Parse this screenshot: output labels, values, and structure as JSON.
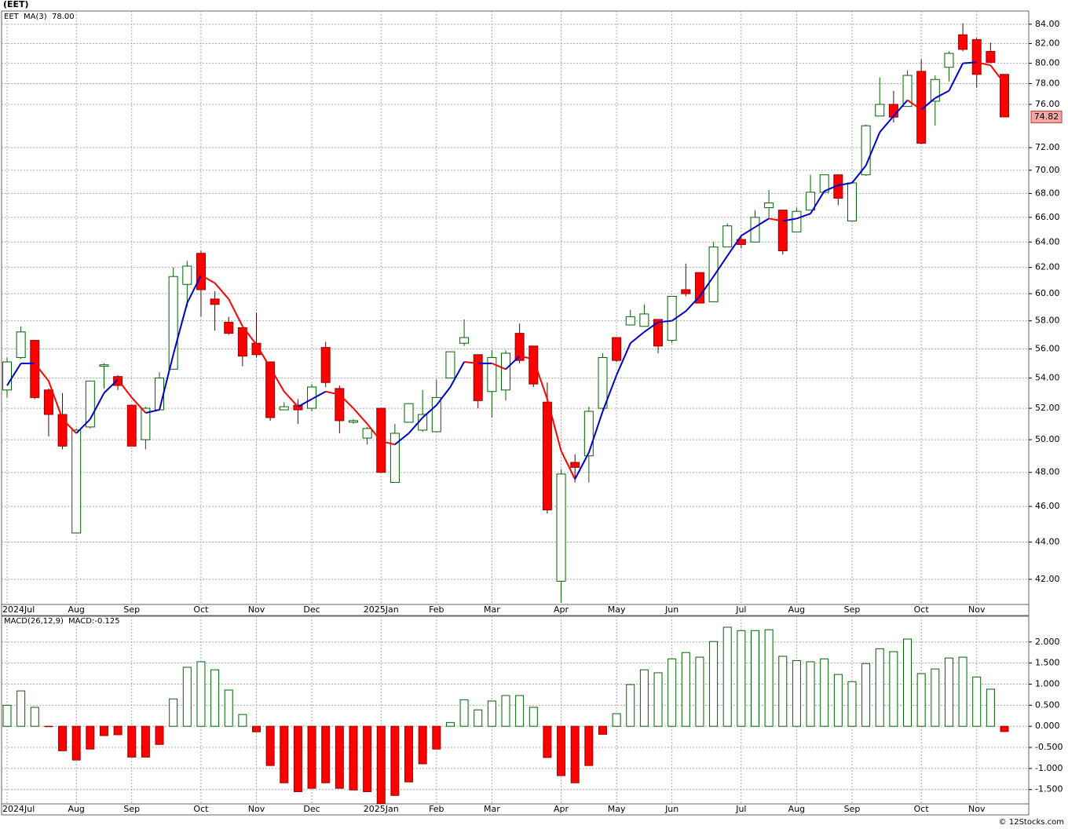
{
  "chart_data": [
    {
      "type": "candlestick",
      "title": "(EET)",
      "symbol": "EET",
      "log_scale": true,
      "grid": true,
      "candle_up_color": "#006400",
      "candle_down_color": "#ff0000",
      "categories": [
        "2024Jul",
        null,
        null,
        null,
        null,
        "Aug",
        null,
        null,
        null,
        "Sep",
        null,
        null,
        null,
        null,
        "Oct",
        null,
        null,
        null,
        "Nov",
        null,
        null,
        null,
        "Dec",
        null,
        null,
        null,
        null,
        "2025Jan",
        null,
        null,
        null,
        "Feb",
        null,
        null,
        null,
        "Mar",
        null,
        null,
        null,
        null,
        "Apr",
        null,
        null,
        null,
        "May",
        null,
        null,
        null,
        "Jun",
        null,
        null,
        null,
        null,
        "Jul",
        null,
        null,
        null,
        "Aug",
        null,
        null,
        null,
        "Sep",
        null,
        null,
        null,
        null,
        "Oct",
        null,
        null,
        null,
        "Nov",
        null,
        null
      ],
      "open": [
        53.2,
        55.4,
        56.6,
        53.2,
        51.6,
        44.5,
        50.8,
        54.8,
        54.1,
        52.2,
        50.0,
        51.9,
        54.6,
        60.7,
        63.1,
        59.6,
        57.9,
        57.5,
        56.4,
        55.1,
        51.9,
        52.2,
        52.0,
        56.1,
        53.3,
        51.1,
        50.1,
        52.0,
        47.4,
        51.1,
        50.6,
        50.5,
        54.0,
        56.4,
        55.6,
        53.1,
        53.2,
        57.1,
        56.2,
        52.4,
        41.9,
        48.6,
        49.0,
        52.0,
        56.8,
        57.7,
        57.6,
        58.1,
        56.6,
        60.3,
        61.6,
        59.4,
        63.6,
        64.2,
        64.0,
        66.8,
        66.6,
        64.8,
        66.6,
        68.1,
        69.6,
        65.7,
        69.6,
        74.9,
        76.0,
        75.8,
        79.2,
        76.3,
        79.6,
        82.9,
        82.4,
        81.2,
        78.9
      ],
      "high": [
        55.4,
        57.6,
        56.6,
        53.3,
        53.0,
        50.7,
        53.8,
        55.0,
        54.2,
        52.2,
        52.1,
        54.4,
        62.0,
        62.5,
        63.3,
        60.2,
        58.3,
        57.5,
        58.6,
        55.1,
        52.4,
        52.6,
        53.6,
        56.5,
        53.5,
        51.3,
        50.8,
        52.0,
        51.0,
        52.3,
        53.2,
        53.9,
        55.8,
        58.1,
        55.6,
        55.9,
        55.9,
        57.8,
        56.2,
        53.7,
        48.2,
        49.1,
        52.1,
        55.7,
        56.8,
        58.8,
        59.2,
        58.1,
        59.8,
        62.3,
        61.6,
        64.0,
        65.5,
        64.5,
        66.6,
        68.3,
        66.6,
        66.8,
        69.6,
        69.6,
        69.6,
        69.0,
        74.1,
        78.6,
        77.3,
        79.3,
        80.4,
        78.8,
        81.2,
        84.1,
        82.6,
        82.1,
        78.9
      ],
      "low": [
        52.7,
        55.3,
        52.6,
        50.2,
        49.4,
        44.5,
        50.7,
        53.3,
        53.2,
        49.6,
        49.4,
        51.9,
        54.6,
        59.0,
        58.3,
        57.3,
        57.0,
        54.8,
        55.4,
        51.2,
        51.9,
        51.0,
        51.8,
        53.4,
        50.4,
        51.0,
        49.7,
        48.0,
        47.4,
        51.1,
        50.5,
        50.5,
        54.0,
        56.2,
        52.0,
        51.4,
        52.5,
        55.0,
        53.4,
        45.6,
        40.8,
        47.4,
        47.4,
        51.9,
        55.1,
        57.7,
        57.6,
        55.7,
        56.4,
        59.8,
        59.3,
        59.4,
        63.6,
        63.5,
        64.0,
        66.0,
        63.0,
        64.8,
        66.6,
        68.1,
        67.0,
        65.7,
        69.5,
        74.9,
        74.3,
        75.8,
        72.3,
        74.0,
        78.2,
        81.2,
        77.6,
        80.0,
        74.82
      ],
      "close": [
        55.1,
        57.2,
        52.7,
        51.6,
        49.6,
        50.6,
        53.8,
        54.9,
        53.5,
        49.6,
        52.0,
        54.0,
        61.3,
        62.1,
        60.3,
        59.2,
        57.1,
        55.5,
        55.6,
        51.4,
        52.1,
        51.9,
        53.4,
        53.7,
        51.2,
        51.2,
        50.7,
        48.0,
        50.4,
        52.3,
        51.6,
        52.7,
        55.8,
        56.8,
        52.5,
        55.4,
        55.7,
        55.2,
        53.6,
        45.8,
        47.9,
        48.3,
        51.8,
        55.4,
        55.2,
        58.3,
        58.5,
        56.2,
        59.8,
        60.0,
        59.3,
        63.6,
        65.3,
        63.8,
        66.0,
        67.2,
        63.3,
        66.5,
        68.1,
        69.6,
        67.6,
        68.9,
        74.0,
        76.0,
        74.8,
        78.8,
        72.4,
        78.4,
        81.0,
        81.4,
        78.9,
        80.1,
        74.82
      ],
      "series": [
        {
          "name": "MA(3)",
          "last_label": "78.00",
          "color": "#0000cc",
          "down_color": "#ff0000",
          "values": [
            53.5,
            55.0,
            55.0,
            53.8,
            51.3,
            50.4,
            51.3,
            53.0,
            53.9,
            52.7,
            51.7,
            51.9,
            55.6,
            59.3,
            61.4,
            60.8,
            59.6,
            57.6,
            56.3,
            54.7,
            53.1,
            52.1,
            52.6,
            53.1,
            52.9,
            52.0,
            51.0,
            49.9,
            49.7,
            50.4,
            51.4,
            52.2,
            53.4,
            55.1,
            55.0,
            55.0,
            54.6,
            55.5,
            55.3,
            52.6,
            49.3,
            47.6,
            49.2,
            51.8,
            54.2,
            56.4,
            57.2,
            57.9,
            58.0,
            58.7,
            59.8,
            61.3,
            62.9,
            64.5,
            65.2,
            65.9,
            65.7,
            65.9,
            66.3,
            68.2,
            68.7,
            68.9,
            70.4,
            73.4,
            74.9,
            76.4,
            75.5,
            76.6,
            77.3,
            80.0,
            80.1,
            79.8,
            78.0
          ]
        }
      ],
      "ylim": [
        40.7,
        85.4
      ],
      "yticks": [
        {
          "value": 42,
          "label": "42.00"
        },
        {
          "value": 44,
          "label": "44.00"
        },
        {
          "value": 46,
          "label": "46.00"
        },
        {
          "value": 48,
          "label": "48.00"
        },
        {
          "value": 50,
          "label": "50.00"
        },
        {
          "value": 52,
          "label": "52.00"
        },
        {
          "value": 54,
          "label": "54.00"
        },
        {
          "value": 56,
          "label": "56.00"
        },
        {
          "value": 58,
          "label": "58.00"
        },
        {
          "value": 60,
          "label": "60.00"
        },
        {
          "value": 62,
          "label": "62.00"
        },
        {
          "value": 64,
          "label": "64.00"
        },
        {
          "value": 66,
          "label": "66.00"
        },
        {
          "value": 68,
          "label": "68.00"
        },
        {
          "value": 70,
          "label": "70.00"
        },
        {
          "value": 72,
          "label": "72.00"
        },
        {
          "value": 76,
          "label": "76.00"
        },
        {
          "value": 78,
          "label": "78.00"
        },
        {
          "value": 80,
          "label": "80.00"
        },
        {
          "value": 82,
          "label": "82.00"
        },
        {
          "value": 84,
          "label": "84.00"
        }
      ]
    },
    {
      "type": "bar",
      "title": "MACD(26,12,9)",
      "legend_value": "MACD:-0.125",
      "grid": true,
      "up_color": "#006400",
      "down_color": "#ff0000",
      "categories": [
        "2024Jul",
        null,
        null,
        null,
        null,
        "Aug",
        null,
        null,
        null,
        "Sep",
        null,
        null,
        null,
        null,
        "Oct",
        null,
        null,
        null,
        "Nov",
        null,
        null,
        null,
        "Dec",
        null,
        null,
        null,
        null,
        "2025Jan",
        null,
        null,
        null,
        "Feb",
        null,
        null,
        null,
        "Mar",
        null,
        null,
        null,
        null,
        "Apr",
        null,
        null,
        null,
        "May",
        null,
        null,
        null,
        "Jun",
        null,
        null,
        null,
        null,
        "Jul",
        null,
        null,
        null,
        "Aug",
        null,
        null,
        null,
        "Sep",
        null,
        null,
        null,
        null,
        "Oct",
        null,
        null,
        null,
        "Nov",
        null,
        null
      ],
      "values": [
        0.5,
        0.84,
        0.45,
        -0.01,
        -0.58,
        -0.8,
        -0.54,
        -0.22,
        -0.2,
        -0.73,
        -0.73,
        -0.43,
        0.65,
        1.4,
        1.53,
        1.34,
        0.86,
        0.28,
        -0.13,
        -0.93,
        -1.34,
        -1.55,
        -1.47,
        -1.34,
        -1.47,
        -1.51,
        -1.55,
        -1.83,
        -1.64,
        -1.32,
        -0.89,
        -0.54,
        0.09,
        0.63,
        0.39,
        0.6,
        0.73,
        0.73,
        0.45,
        -0.74,
        -1.17,
        -1.34,
        -0.93,
        -0.19,
        0.3,
        0.99,
        1.34,
        1.27,
        1.6,
        1.75,
        1.64,
        2.01,
        2.35,
        2.27,
        2.27,
        2.29,
        1.66,
        1.56,
        1.53,
        1.6,
        1.23,
        1.06,
        1.49,
        1.84,
        1.77,
        2.07,
        1.25,
        1.36,
        1.62,
        1.64,
        1.17,
        0.88,
        -0.125
      ],
      "ylim": [
        -1.84,
        2.61
      ],
      "yticks": [
        {
          "value": -1.5,
          "label": "-1.500"
        },
        {
          "value": -1,
          "label": "-1.000"
        },
        {
          "value": -0.5,
          "label": "-0.500"
        },
        {
          "value": 0,
          "label": "0.000"
        },
        {
          "value": 0.5,
          "label": "0.500"
        },
        {
          "value": 1,
          "label": "1.000"
        },
        {
          "value": 1.5,
          "label": "1.500"
        },
        {
          "value": 2,
          "label": "2.000"
        }
      ]
    }
  ],
  "footer": "© 12Stocks.com"
}
